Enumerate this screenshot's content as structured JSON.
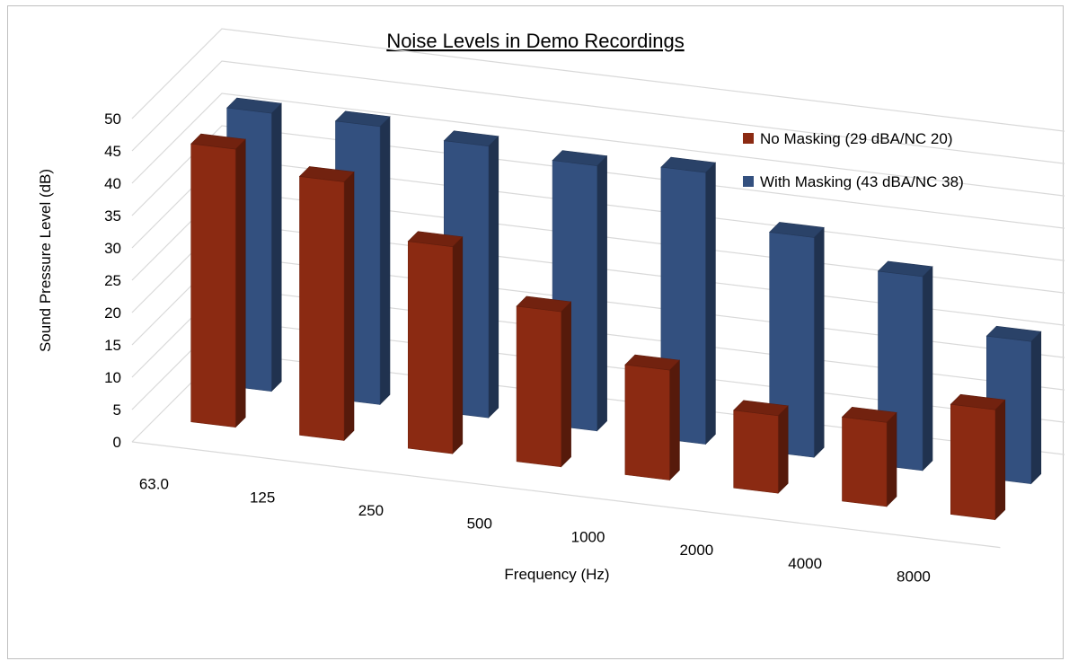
{
  "chart_data": {
    "type": "bar",
    "title": "Noise Levels in Demo Recordings",
    "xlabel": "Frequency (Hz)",
    "ylabel": "Sound Pressure Level (dB)",
    "ylim": [
      0,
      50
    ],
    "yticks": [
      "0",
      "5",
      "10",
      "15",
      "20",
      "25",
      "30",
      "35",
      "40",
      "45",
      "50"
    ],
    "categories": [
      "63.0",
      "125",
      "250",
      "500",
      "1000",
      "2000",
      "4000",
      "8000"
    ],
    "series": [
      {
        "name": "No Masking (29 dBA/NC 20)",
        "color": "#8b2a12",
        "values": [
          43,
          40,
          32,
          24,
          17,
          12,
          13,
          17
        ]
      },
      {
        "name": "With Masking (43 dBA/NC 38)",
        "color": "#33507f",
        "values": [
          43,
          43,
          42,
          41,
          42,
          34,
          30,
          22
        ]
      }
    ],
    "legend_position": "right",
    "grid": true,
    "style": "3d-clustered-column"
  }
}
